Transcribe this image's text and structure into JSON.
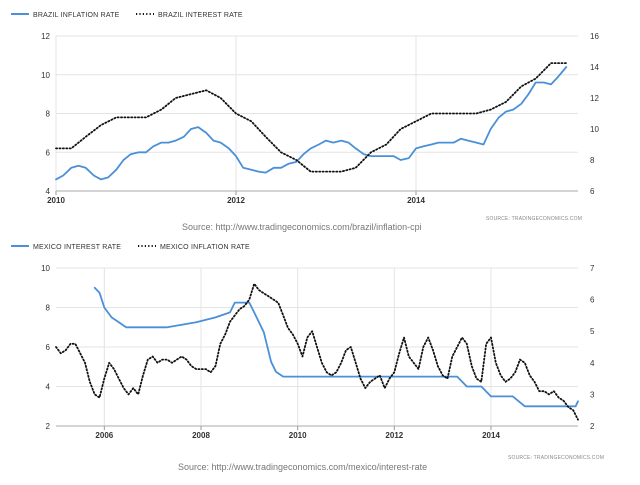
{
  "chart_data": [
    {
      "type": "line",
      "title": "",
      "dual_axis": true,
      "legend_position": "top-left",
      "grid": true,
      "x_ticks": [
        "2010",
        "2012",
        "2014"
      ],
      "x_range": [
        2010.0,
        2015.8
      ],
      "y_left": {
        "lim": [
          4,
          12
        ],
        "ticks": [
          "4",
          "6",
          "8",
          "10",
          "12"
        ]
      },
      "y_right": {
        "lim": [
          6,
          16
        ],
        "ticks": [
          "6",
          "8",
          "10",
          "12",
          "14",
          "16"
        ]
      },
      "series": [
        {
          "name": "BRAZIL INFLATION RATE",
          "axis": "left",
          "style": "solid",
          "color": "#4a90d9",
          "x": [
            2010.0,
            2010.08,
            2010.17,
            2010.25,
            2010.33,
            2010.42,
            2010.5,
            2010.58,
            2010.67,
            2010.75,
            2010.83,
            2010.92,
            2011.0,
            2011.08,
            2011.17,
            2011.25,
            2011.33,
            2011.42,
            2011.5,
            2011.58,
            2011.67,
            2011.75,
            2011.83,
            2011.92,
            2012.0,
            2012.08,
            2012.17,
            2012.25,
            2012.33,
            2012.42,
            2012.5,
            2012.58,
            2012.67,
            2012.75,
            2012.83,
            2012.92,
            2013.0,
            2013.08,
            2013.17,
            2013.25,
            2013.33,
            2013.42,
            2013.5,
            2013.58,
            2013.67,
            2013.75,
            2013.83,
            2013.92,
            2014.0,
            2014.08,
            2014.17,
            2014.25,
            2014.33,
            2014.42,
            2014.5,
            2014.58,
            2014.67,
            2014.75,
            2014.83,
            2014.92,
            2015.0,
            2015.08,
            2015.17,
            2015.25,
            2015.33,
            2015.42,
            2015.5,
            2015.58,
            2015.67
          ],
          "y": [
            4.6,
            4.8,
            5.2,
            5.3,
            5.2,
            4.8,
            4.6,
            4.7,
            5.1,
            5.6,
            5.9,
            6.0,
            6.0,
            6.3,
            6.5,
            6.5,
            6.6,
            6.8,
            7.2,
            7.3,
            7.0,
            6.6,
            6.5,
            6.2,
            5.8,
            5.2,
            5.1,
            5.0,
            4.95,
            5.2,
            5.2,
            5.4,
            5.5,
            5.9,
            6.2,
            6.4,
            6.6,
            6.5,
            6.6,
            6.5,
            6.2,
            5.9,
            5.8,
            5.8,
            5.8,
            5.8,
            5.6,
            5.7,
            6.2,
            6.3,
            6.4,
            6.5,
            6.5,
            6.5,
            6.7,
            6.6,
            6.5,
            6.4,
            7.2,
            7.8,
            8.1,
            8.2,
            8.5,
            9.0,
            9.6,
            9.6,
            9.5,
            9.9,
            10.4
          ]
        },
        {
          "name": "BRAZIL INTEREST RATE",
          "axis": "right",
          "style": "dotted",
          "color": "#111111",
          "x": [
            2010.0,
            2010.17,
            2010.33,
            2010.5,
            2010.67,
            2010.83,
            2011.0,
            2011.17,
            2011.33,
            2011.5,
            2011.67,
            2011.83,
            2012.0,
            2012.17,
            2012.33,
            2012.5,
            2012.67,
            2012.83,
            2013.0,
            2013.17,
            2013.33,
            2013.5,
            2013.67,
            2013.83,
            2014.0,
            2014.17,
            2014.33,
            2014.5,
            2014.67,
            2014.83,
            2015.0,
            2015.17,
            2015.33,
            2015.5,
            2015.67
          ],
          "y": [
            8.75,
            8.75,
            9.5,
            10.25,
            10.75,
            10.75,
            10.75,
            11.25,
            12.0,
            12.25,
            12.5,
            12.0,
            11.0,
            10.5,
            9.5,
            8.5,
            8.0,
            7.25,
            7.25,
            7.25,
            7.5,
            8.5,
            9.0,
            10.0,
            10.5,
            11.0,
            11.0,
            11.0,
            11.0,
            11.25,
            11.75,
            12.75,
            13.25,
            14.25,
            14.25
          ]
        }
      ]
    },
    {
      "type": "line",
      "title": "",
      "dual_axis": true,
      "legend_position": "top-left",
      "grid": true,
      "x_ticks": [
        "2006",
        "2008",
        "2010",
        "2012",
        "2014"
      ],
      "x_range": [
        2005.0,
        2015.8
      ],
      "y_left": {
        "lim": [
          2,
          10
        ],
        "ticks": [
          "2",
          "4",
          "6",
          "8",
          "10"
        ]
      },
      "y_right": {
        "lim": [
          2,
          7
        ],
        "ticks": [
          "2",
          "3",
          "4",
          "5",
          "6",
          "7"
        ]
      },
      "series": [
        {
          "name": "MEXICO INTEREST RATE",
          "axis": "left",
          "style": "solid",
          "color": "#4a90d9",
          "x": [
            2005.8,
            2005.9,
            2006.0,
            2006.15,
            2006.3,
            2006.45,
            2007.0,
            2007.3,
            2007.9,
            2008.3,
            2008.6,
            2008.7,
            2008.8,
            2009.0,
            2009.1,
            2009.3,
            2009.45,
            2009.55,
            2009.7,
            2010.0,
            2011.0,
            2012.0,
            2013.0,
            2013.3,
            2013.5,
            2013.8,
            2014.0,
            2014.45,
            2014.7,
            2015.0,
            2015.75,
            2015.8
          ],
          "y": [
            9.0,
            8.75,
            8.0,
            7.5,
            7.25,
            7.0,
            7.0,
            7.0,
            7.25,
            7.5,
            7.75,
            8.25,
            8.25,
            8.25,
            7.75,
            6.75,
            5.25,
            4.75,
            4.5,
            4.5,
            4.5,
            4.5,
            4.5,
            4.5,
            4.0,
            4.0,
            3.5,
            3.5,
            3.0,
            3.0,
            3.0,
            3.25
          ]
        },
        {
          "name": "MEXICO INFLATION RATE",
          "axis": "right",
          "style": "dotted",
          "color": "#111111",
          "x": [
            2005.0,
            2005.1,
            2005.2,
            2005.3,
            2005.4,
            2005.5,
            2005.6,
            2005.7,
            2005.8,
            2005.9,
            2006.0,
            2006.1,
            2006.2,
            2006.3,
            2006.4,
            2006.5,
            2006.6,
            2006.7,
            2006.8,
            2006.9,
            2007.0,
            2007.1,
            2007.2,
            2007.3,
            2007.4,
            2007.5,
            2007.6,
            2007.7,
            2007.8,
            2007.9,
            2008.0,
            2008.1,
            2008.2,
            2008.3,
            2008.4,
            2008.5,
            2008.6,
            2008.7,
            2008.8,
            2008.9,
            2009.0,
            2009.1,
            2009.2,
            2009.3,
            2009.4,
            2009.5,
            2009.6,
            2009.7,
            2009.8,
            2009.9,
            2010.0,
            2010.1,
            2010.2,
            2010.3,
            2010.4,
            2010.5,
            2010.6,
            2010.7,
            2010.8,
            2010.9,
            2011.0,
            2011.1,
            2011.2,
            2011.3,
            2011.4,
            2011.5,
            2011.6,
            2011.7,
            2011.8,
            2011.9,
            2012.0,
            2012.1,
            2012.2,
            2012.3,
            2012.4,
            2012.5,
            2012.6,
            2012.7,
            2012.8,
            2012.9,
            2013.0,
            2013.1,
            2013.2,
            2013.3,
            2013.4,
            2013.5,
            2013.6,
            2013.7,
            2013.8,
            2013.9,
            2014.0,
            2014.1,
            2014.2,
            2014.3,
            2014.4,
            2014.5,
            2014.6,
            2014.7,
            2014.8,
            2014.9,
            2015.0,
            2015.1,
            2015.2,
            2015.3,
            2015.4,
            2015.5,
            2015.6,
            2015.7,
            2015.8
          ],
          "y": [
            4.5,
            4.3,
            4.4,
            4.6,
            4.6,
            4.3,
            4.0,
            3.4,
            3.0,
            2.9,
            3.5,
            4.0,
            3.8,
            3.5,
            3.2,
            3.0,
            3.2,
            3.0,
            3.6,
            4.1,
            4.2,
            4.0,
            4.1,
            4.1,
            4.0,
            4.1,
            4.2,
            4.1,
            3.9,
            3.8,
            3.8,
            3.8,
            3.7,
            3.9,
            4.6,
            4.9,
            5.3,
            5.5,
            5.7,
            5.8,
            6.0,
            6.5,
            6.3,
            6.2,
            6.1,
            6.0,
            5.9,
            5.5,
            5.1,
            4.9,
            4.6,
            4.2,
            4.8,
            5.0,
            4.5,
            4.0,
            3.7,
            3.6,
            3.7,
            4.0,
            4.4,
            4.5,
            4.0,
            3.5,
            3.2,
            3.4,
            3.5,
            3.6,
            3.2,
            3.5,
            3.7,
            4.3,
            4.8,
            4.2,
            4.0,
            3.8,
            4.5,
            4.8,
            4.4,
            3.9,
            3.6,
            3.5,
            4.2,
            4.5,
            4.8,
            4.6,
            3.9,
            3.5,
            3.4,
            4.6,
            4.8,
            4.0,
            3.6,
            3.4,
            3.5,
            3.7,
            4.1,
            4.0,
            3.6,
            3.4,
            3.1,
            3.1,
            3.0,
            3.1,
            2.9,
            2.8,
            2.6,
            2.5,
            2.2
          ]
        }
      ]
    }
  ],
  "top_source": "Source: http://www.tradingeconomics.com/brazil/inflation-cpi",
  "top_credit": "SOURCE: TRADINGECONOMICS.COM",
  "bottom_source": "Source: http://www.tradingeconomics.com/mexico/interest-rate",
  "bottom_credit": "SOURCE: TRADINGECONOMICS.COM"
}
